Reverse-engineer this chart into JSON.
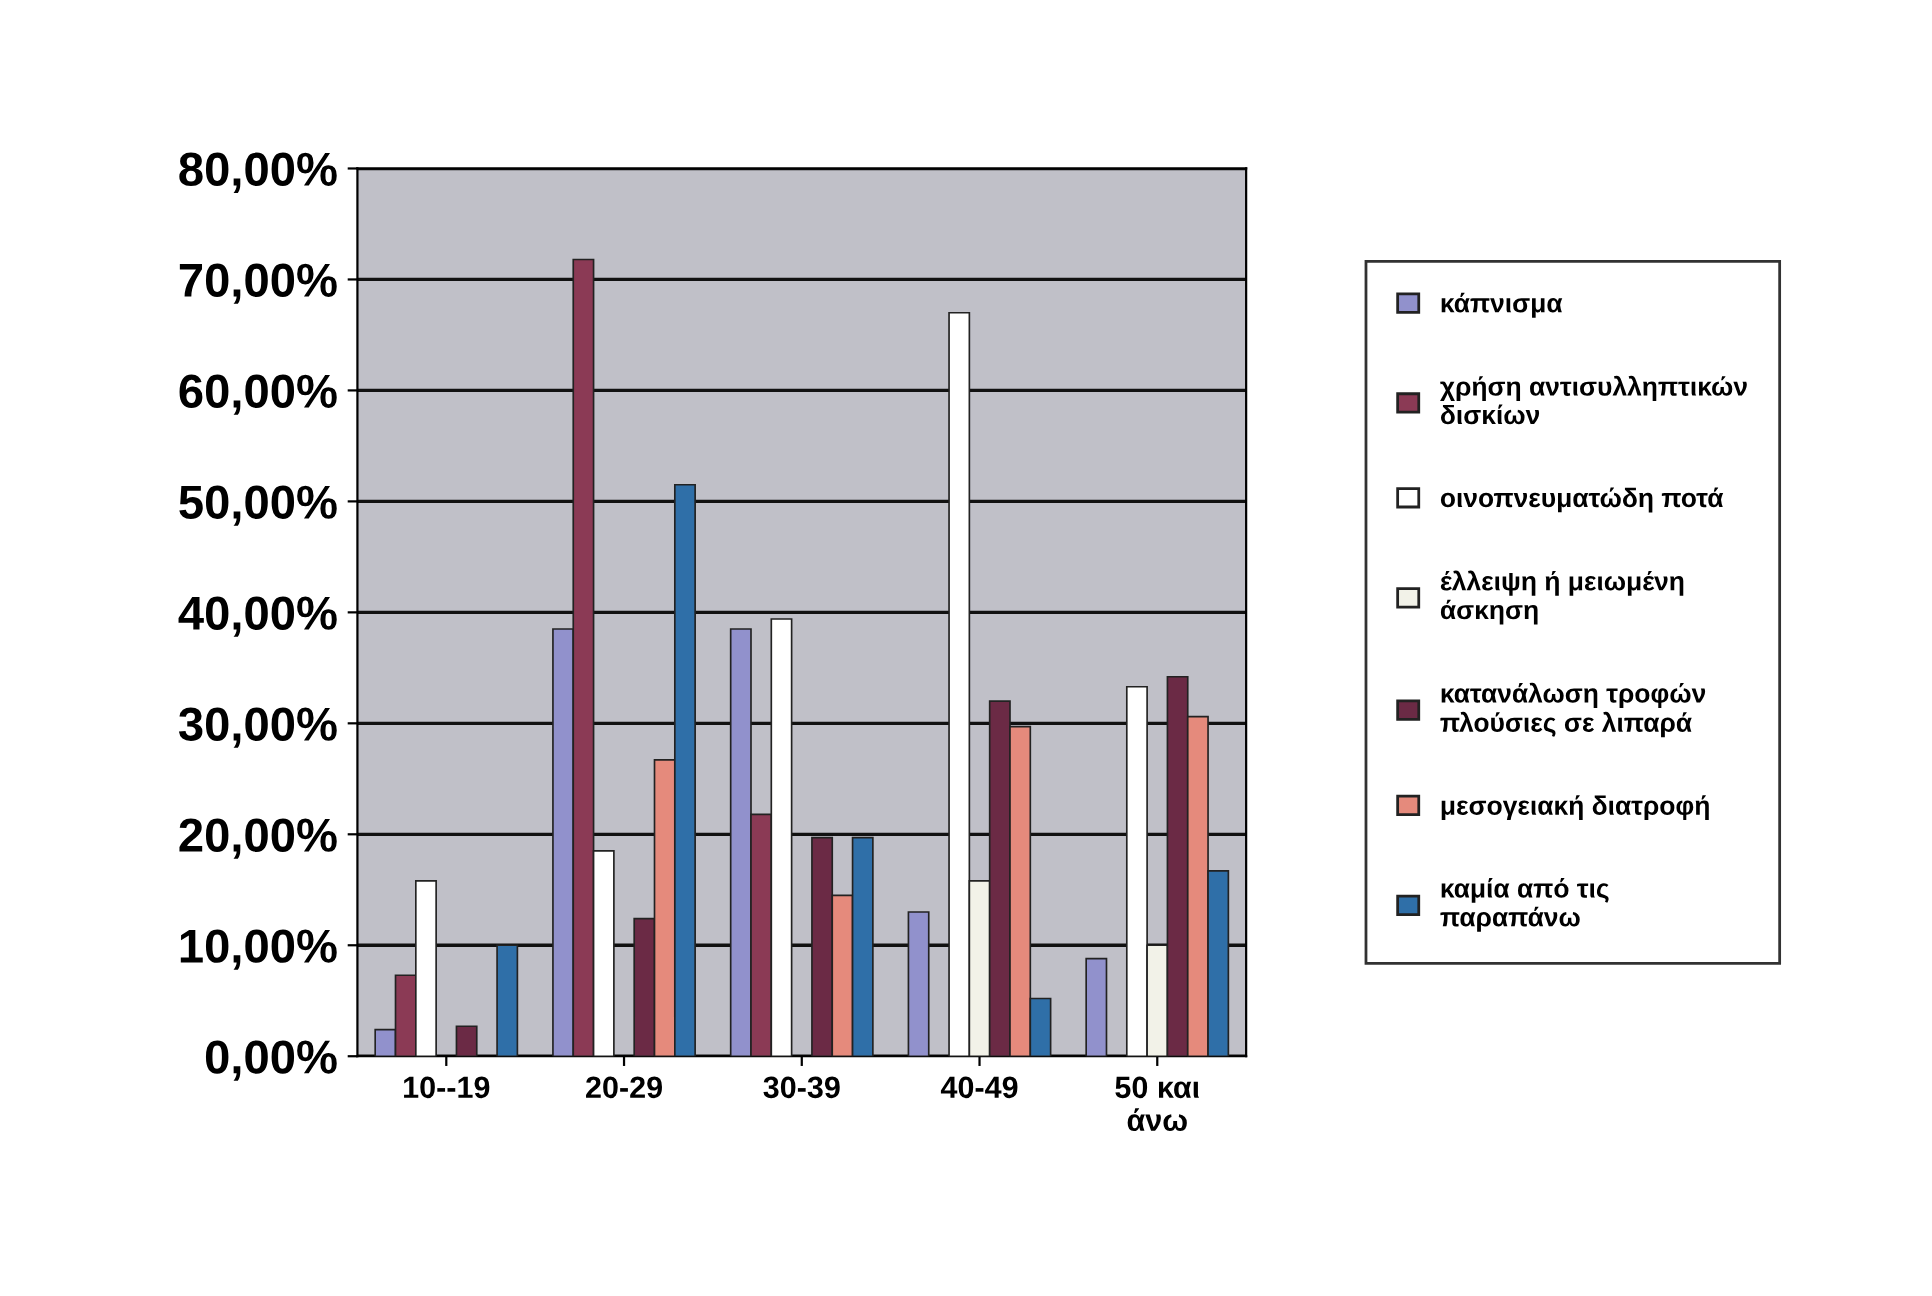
{
  "chart_data": {
    "type": "bar",
    "categories": [
      "10--19",
      "20-29",
      "30-39",
      "40-49",
      "50 και\nάνω"
    ],
    "series": [
      {
        "name": "κάπνισμα",
        "color": "#9191cc",
        "values": [
          2.4,
          38.5,
          38.5,
          13,
          8.8
        ]
      },
      {
        "name": "χρήση αντισυλληπτικών\nδισκίων",
        "color": "#8b3a55",
        "values": [
          7.3,
          71.8,
          21.8,
          null,
          null
        ]
      },
      {
        "name": "οινοπνευματώδη ποτά",
        "color": "#ffffff",
        "values": [
          15.8,
          18.5,
          39.4,
          67,
          33.3
        ]
      },
      {
        "name": "έλλειψη ή μειωμένη\nάσκηση",
        "color": "#f2f2e8",
        "values": [
          null,
          null,
          null,
          15.8,
          10
        ]
      },
      {
        "name": "κατανάλωση τροφών\nπλούσιες σε λιπαρά",
        "color": "#6b2a45",
        "values": [
          2.7,
          12.4,
          19.7,
          32,
          34.2
        ]
      },
      {
        "name": "μεσογειακή διατροφή",
        "color": "#e58a7c",
        "values": [
          null,
          26.7,
          14.5,
          29.7,
          30.6
        ]
      },
      {
        "name": "καμία από τις\nπαραπάνω",
        "color": "#2f6fa8",
        "values": [
          10,
          51.5,
          19.7,
          5.2,
          16.7
        ]
      }
    ],
    "ylim": [
      0,
      80
    ],
    "yticks": [
      {
        "value": 0,
        "label": "0,00%"
      },
      {
        "value": 10,
        "label": "10,00%"
      },
      {
        "value": 20,
        "label": "20,00%"
      },
      {
        "value": 30,
        "label": "30,00%"
      },
      {
        "value": 40,
        "label": "40,00%"
      },
      {
        "value": 50,
        "label": "50,00%"
      },
      {
        "value": 60,
        "label": "60,00%"
      },
      {
        "value": 70,
        "label": "70,00%"
      },
      {
        "value": 80,
        "label": "80,00%"
      }
    ],
    "grid": "y",
    "legend": "right"
  }
}
